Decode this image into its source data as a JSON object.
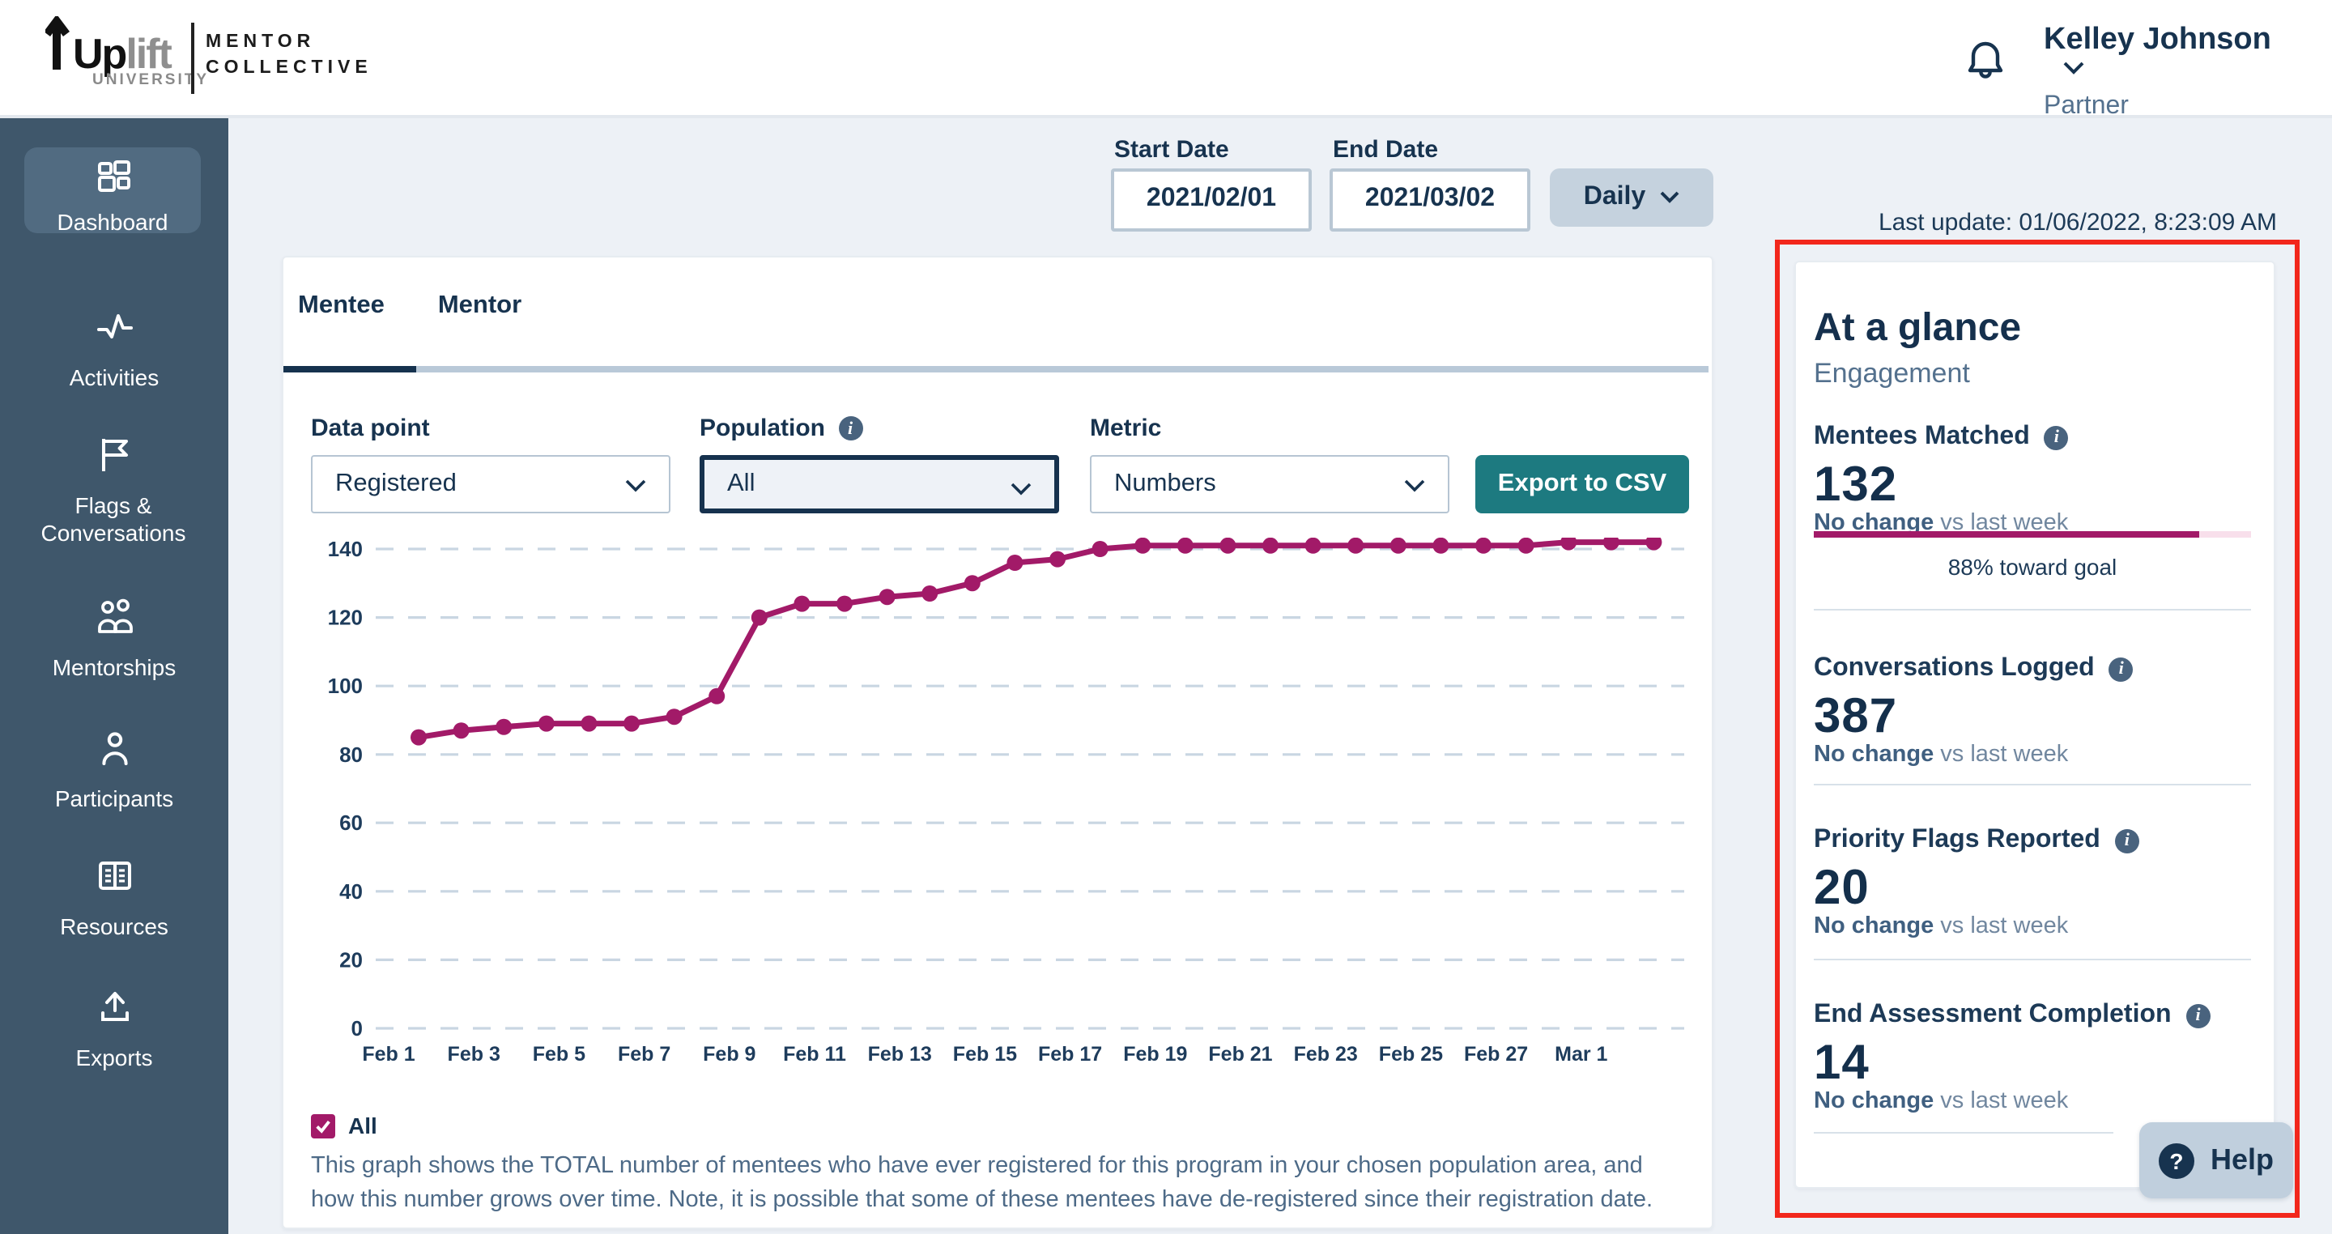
{
  "header": {
    "logo": {
      "brand_main": "Up",
      "brand_accent": "lift",
      "brand_caption": "UNIVERSITY",
      "org_line1": "MENTOR",
      "org_line2": "COLLECTIVE"
    },
    "user": {
      "name": "Kelley Johnson",
      "role": "Partner"
    }
  },
  "sidebar": {
    "items": [
      {
        "label": "Dashboard",
        "active": true
      },
      {
        "label": "Activities",
        "active": false
      },
      {
        "label": "Flags & Conversations",
        "active": false
      },
      {
        "label": "Mentorships",
        "active": false
      },
      {
        "label": "Participants",
        "active": false
      },
      {
        "label": "Resources",
        "active": false
      },
      {
        "label": "Exports",
        "active": false
      }
    ]
  },
  "toolbar": {
    "start_date": {
      "label": "Start Date",
      "value": "2021/02/01"
    },
    "end_date": {
      "label": "End Date",
      "value": "2021/03/02"
    },
    "interval_label": "Daily",
    "last_update": "Last update: 01/06/2022, 8:23:09 AM"
  },
  "tabs": {
    "mentee": "Mentee",
    "mentor": "Mentor"
  },
  "filters": {
    "data_point": {
      "label": "Data point",
      "value": "Registered"
    },
    "population": {
      "label": "Population",
      "value": "All"
    },
    "metric": {
      "label": "Metric",
      "value": "Numbers"
    },
    "export_label": "Export to CSV"
  },
  "chart_data": {
    "type": "line",
    "x": [
      "Feb 1",
      "Feb 2",
      "Feb 3",
      "Feb 4",
      "Feb 5",
      "Feb 6",
      "Feb 7",
      "Feb 8",
      "Feb 9",
      "Feb 10",
      "Feb 11",
      "Feb 12",
      "Feb 13",
      "Feb 14",
      "Feb 15",
      "Feb 16",
      "Feb 17",
      "Feb 18",
      "Feb 19",
      "Feb 20",
      "Feb 21",
      "Feb 22",
      "Feb 23",
      "Feb 24",
      "Feb 25",
      "Feb 26",
      "Feb 27",
      "Feb 28",
      "Mar 1",
      "Mar 2"
    ],
    "values": [
      85,
      87,
      88,
      89,
      89,
      89,
      91,
      97,
      120,
      124,
      124,
      126,
      127,
      130,
      136,
      137,
      140,
      141,
      141,
      141,
      141,
      141,
      141,
      141,
      141,
      141,
      141,
      142,
      142,
      142
    ],
    "x_tick_labels": [
      "Feb 1",
      "Feb 3",
      "Feb 5",
      "Feb 7",
      "Feb 9",
      "Feb 11",
      "Feb 13",
      "Feb 15",
      "Feb 17",
      "Feb 19",
      "Feb 21",
      "Feb 23",
      "Feb 25",
      "Feb 27",
      "Mar 1"
    ],
    "yticks": [
      0,
      20,
      40,
      60,
      80,
      100,
      120,
      140
    ],
    "ylim": [
      0,
      148
    ],
    "xlabel": "",
    "ylabel": "",
    "legend_position": "bottom-left",
    "grid": "horizontal-dashed",
    "line_color": "#a21a68"
  },
  "legend": {
    "checkbox_label": "All",
    "checked": true
  },
  "description": "This graph shows the TOTAL number of mentees who have ever registered for this program in your chosen population area, and how this number grows over time. Note, it is possible that some of these mentees have de-registered since their registration date.",
  "glance": {
    "title": "At a glance",
    "subtitle": "Engagement",
    "stats": [
      {
        "label": "Mentees Matched",
        "value": "132",
        "change": "No change",
        "change_suffix": " vs last week",
        "progress_pct": 88,
        "progress_label": "88% toward goal"
      },
      {
        "label": "Conversations Logged",
        "value": "387",
        "change": "No change",
        "change_suffix": " vs last week"
      },
      {
        "label": "Priority Flags Reported",
        "value": "20",
        "change": "No change",
        "change_suffix": " vs last week"
      },
      {
        "label": "End Assessment Completion",
        "value": "14",
        "change": "No change",
        "change_suffix": " vs last week"
      }
    ]
  },
  "help": {
    "label": "Help"
  },
  "colors": {
    "accent_magenta": "#a21a68",
    "teal_button": "#1d7a80",
    "navy_text": "#17334f",
    "sidebar_bg": "#3f576b",
    "sidebar_active_bg": "#516b81",
    "annotation_red": "#f2271c",
    "page_bg": "#edf1f6"
  }
}
